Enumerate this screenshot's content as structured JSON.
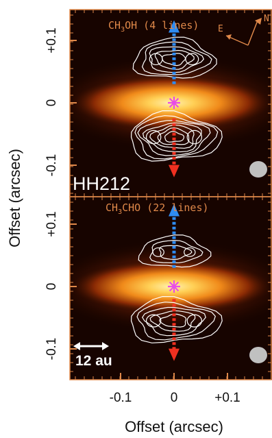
{
  "chart_data": [
    {
      "type": "heatmap",
      "panel": "top",
      "label": "CH3OH (4 lines)",
      "label_main": "CH",
      "label_sub": "3",
      "label_rest": "OH (4 lines)",
      "source_label": "HH212",
      "compass": {
        "east": "E",
        "north": "N"
      },
      "xlim": [
        -0.17,
        0.17
      ],
      "ylim": [
        -0.15,
        0.15
      ],
      "yticks": [
        {
          "value": 0.1,
          "label": "+0.1"
        },
        {
          "value": 0,
          "label": "0"
        },
        {
          "value": -0.1,
          "label": "-0.1"
        }
      ],
      "blue_jet": {
        "x": 0,
        "y_from": 0.03,
        "y_to": 0.128
      },
      "red_jet": {
        "x": 0,
        "y_from": -0.025,
        "y_to": -0.115
      },
      "protostar": {
        "x": 0,
        "y": 0
      },
      "contours": [
        {
          "lobe": "north",
          "center": [
            0.0,
            0.07
          ],
          "rx": 0.075,
          "ry": 0.032,
          "levels": 5
        },
        {
          "lobe": "south",
          "center": [
            0.0,
            -0.055
          ],
          "rx": 0.085,
          "ry": 0.038,
          "levels": 7
        }
      ],
      "beam": {
        "x": 0.135,
        "y": -0.11
      }
    },
    {
      "type": "heatmap",
      "panel": "bottom",
      "label": "CH3CHO (22 lines)",
      "label_main": "CH",
      "label_sub": "3",
      "label_rest": "CHO (22 lines)",
      "scale_bar": "12 au",
      "xlim": [
        -0.17,
        0.17
      ],
      "ylim": [
        -0.15,
        0.15
      ],
      "xticks": [
        {
          "value": -0.1,
          "label": "-0.1"
        },
        {
          "value": 0,
          "label": "0"
        },
        {
          "value": 0.1,
          "label": "+0.1"
        }
      ],
      "yticks": [
        {
          "value": 0.1,
          "label": "+0.1"
        },
        {
          "value": 0,
          "label": "0"
        },
        {
          "value": -0.1,
          "label": "-0.1"
        }
      ],
      "blue_jet": {
        "x": 0,
        "y_from": 0.03,
        "y_to": 0.128
      },
      "red_jet": {
        "x": 0,
        "y_from": -0.02,
        "y_to": -0.115
      },
      "protostar": {
        "x": 0,
        "y": 0
      },
      "contours": [
        {
          "lobe": "north",
          "center": [
            0.0,
            0.055
          ],
          "rx": 0.065,
          "ry": 0.025,
          "levels": 3
        },
        {
          "lobe": "south",
          "center": [
            0.0,
            -0.055
          ],
          "rx": 0.085,
          "ry": 0.035,
          "levels": 5
        }
      ],
      "beam": {
        "x": 0.135,
        "y": -0.11
      }
    }
  ],
  "axes": {
    "xlabel": "Offset (arcsec)",
    "ylabel": "Offset (arcsec)"
  },
  "colors": {
    "background": "#170400",
    "disk_core": "#ffe08a",
    "disk_mid": "#f08a1a",
    "disk_outer": "#6a1c02",
    "blue_jet": "#2f8cf2",
    "red_jet": "#f03020",
    "protostar": "#e84ce8",
    "contour": "#ffffff",
    "frame": "#e0894a",
    "beam": "#c0c0c0"
  }
}
